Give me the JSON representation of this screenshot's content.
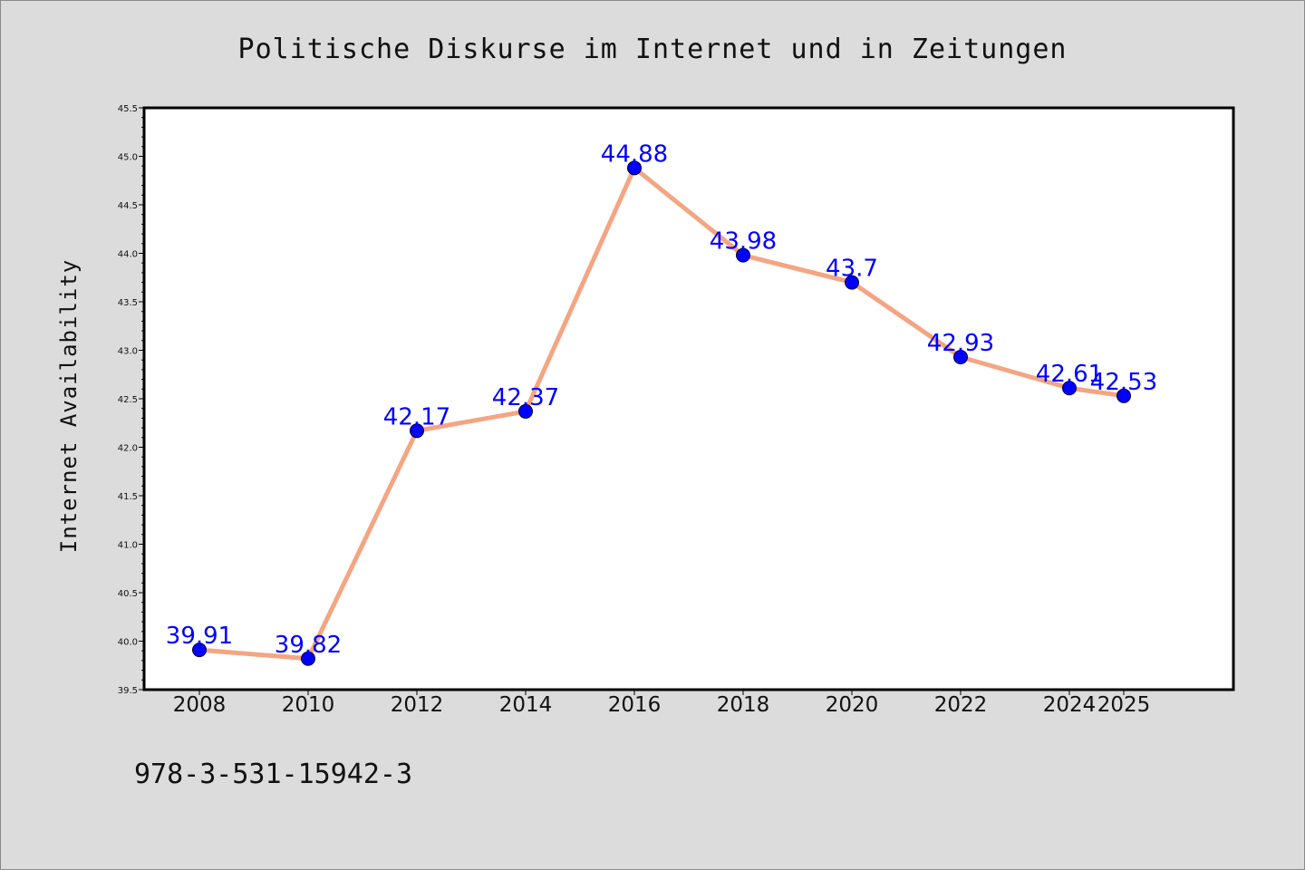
{
  "chart_data": {
    "type": "line",
    "title": "Politische Diskurse im Internet und in Zeitungen",
    "xlabel": "",
    "ylabel": "Internet Availability",
    "categories": [
      "2008",
      "2010",
      "2012",
      "2014",
      "2016",
      "2018",
      "2020",
      "2022",
      "2024",
      "2025"
    ],
    "series": [
      {
        "values": [
          39.91,
          39.82,
          42.17,
          42.37,
          44.88,
          43.98,
          43.7,
          42.93,
          42.61,
          42.53
        ],
        "labels": [
          "39.91",
          "39.82",
          "42.17",
          "42.37",
          "44.88",
          "43.98",
          "43.7",
          "42.93",
          "42.61",
          "42.53"
        ],
        "line_color": "#f4a582",
        "marker_color": "#0000ff"
      }
    ],
    "ylim": [
      39.5,
      45.5
    ],
    "yticks": [
      "39.5",
      "40.0",
      "40.5",
      "41.0",
      "41.5",
      "42.0",
      "42.5",
      "43.0",
      "43.5",
      "44.0",
      "44.5",
      "45.0",
      "45.5"
    ],
    "grid": false,
    "legend": "none",
    "data_label_color": "#0000ff"
  },
  "footer": {
    "isbn": "978-3-531-15942-3"
  },
  "colors": {
    "page_background": "#dcdcdc",
    "plot_background": "#ffffff",
    "axes_frame": "#000000"
  }
}
